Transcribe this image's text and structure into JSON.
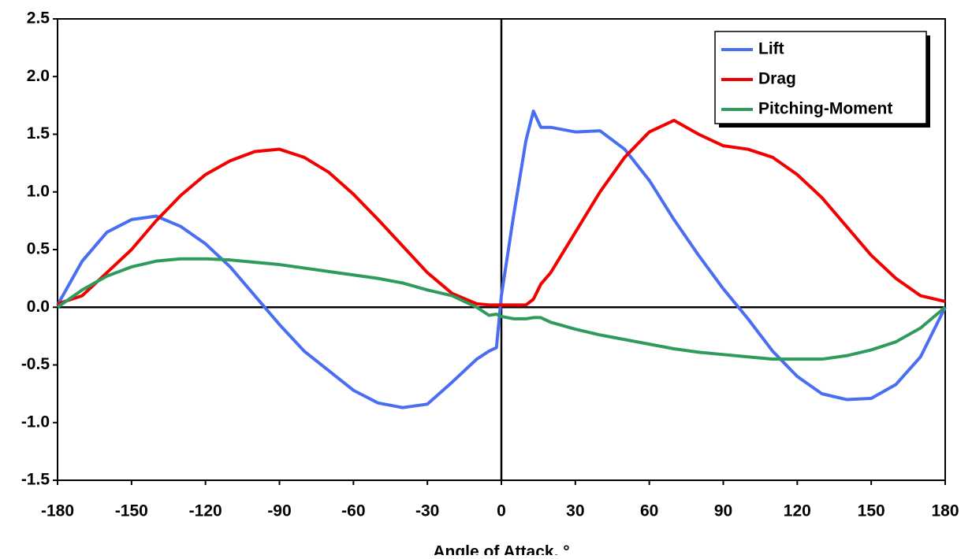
{
  "chart_data": {
    "type": "line",
    "xlabel": "Angle of Attack, °",
    "x": [
      -180,
      -170,
      -160,
      -150,
      -140,
      -130,
      -120,
      -110,
      -100,
      -90,
      -80,
      -70,
      -60,
      -50,
      -40,
      -30,
      -20,
      -10,
      -5,
      -2,
      0,
      5,
      10,
      13,
      16,
      20,
      30,
      40,
      50,
      60,
      70,
      80,
      90,
      100,
      110,
      120,
      130,
      140,
      150,
      160,
      170,
      180
    ],
    "series": [
      {
        "name": "Lift",
        "color": "#4a6ef2",
        "values": [
          0.02,
          0.4,
          0.65,
          0.76,
          0.79,
          0.7,
          0.55,
          0.35,
          0.1,
          -0.15,
          -0.38,
          -0.55,
          -0.72,
          -0.83,
          -0.87,
          -0.84,
          -0.65,
          -0.45,
          -0.38,
          -0.35,
          0.1,
          0.8,
          1.45,
          1.7,
          1.56,
          1.56,
          1.52,
          1.53,
          1.37,
          1.1,
          0.76,
          0.45,
          0.16,
          -0.1,
          -0.38,
          -0.6,
          -0.75,
          -0.8,
          -0.79,
          -0.67,
          -0.43,
          0.0
        ]
      },
      {
        "name": "Drag",
        "color": "#f20000",
        "values": [
          0.03,
          0.1,
          0.3,
          0.5,
          0.75,
          0.97,
          1.15,
          1.27,
          1.35,
          1.37,
          1.3,
          1.17,
          0.98,
          0.76,
          0.53,
          0.3,
          0.12,
          0.03,
          0.02,
          0.02,
          0.02,
          0.02,
          0.02,
          0.07,
          0.2,
          0.3,
          0.65,
          1.0,
          1.3,
          1.52,
          1.62,
          1.5,
          1.4,
          1.37,
          1.3,
          1.15,
          0.95,
          0.7,
          0.45,
          0.25,
          0.1,
          0.05
        ]
      },
      {
        "name": "Pitching-Moment",
        "color": "#2e9a5c",
        "values": [
          0.0,
          0.15,
          0.27,
          0.35,
          0.4,
          0.42,
          0.42,
          0.41,
          0.39,
          0.37,
          0.34,
          0.31,
          0.28,
          0.25,
          0.21,
          0.15,
          0.1,
          0.0,
          -0.07,
          -0.06,
          -0.08,
          -0.1,
          -0.1,
          -0.09,
          -0.09,
          -0.13,
          -0.19,
          -0.24,
          -0.28,
          -0.32,
          -0.36,
          -0.39,
          -0.41,
          -0.43,
          -0.45,
          -0.45,
          -0.45,
          -0.42,
          -0.37,
          -0.3,
          -0.18,
          0.0
        ]
      }
    ],
    "xlim": [
      -180,
      180
    ],
    "xticks": [
      -180,
      -150,
      -120,
      -90,
      -60,
      -30,
      0,
      30,
      60,
      90,
      120,
      150,
      180
    ],
    "ylim": [
      -1.5,
      2.5
    ],
    "yticks": [
      -1.5,
      {
        "value": -1,
        "label": "-1.0"
      },
      -0.5,
      {
        "value": 0,
        "label": "0.0"
      },
      0.5,
      {
        "value": 1,
        "label": "1.0"
      },
      1.5,
      {
        "value": 2,
        "label": "2.0"
      },
      2.5
    ],
    "grid": false,
    "legend": "upper right"
  }
}
